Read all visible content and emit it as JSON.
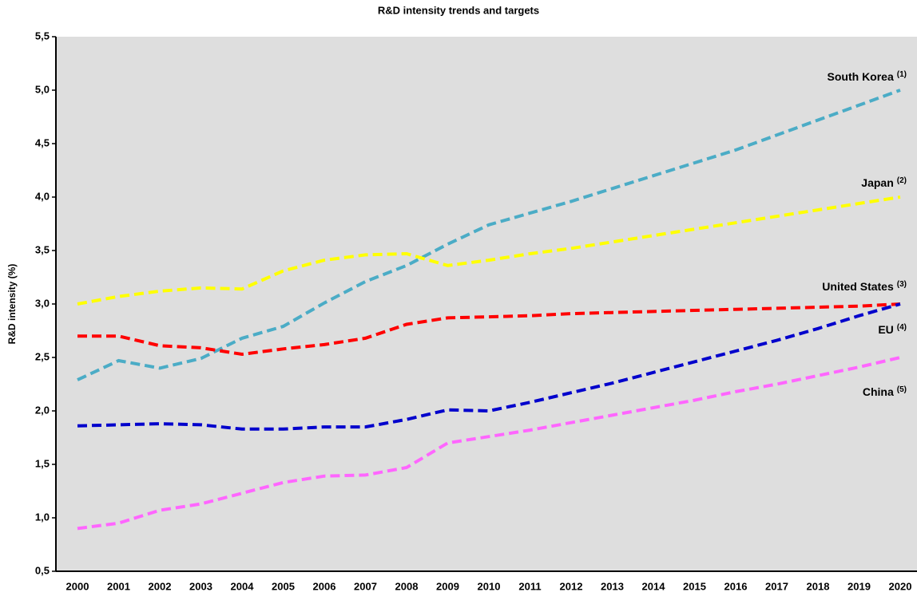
{
  "chart_data": {
    "type": "line",
    "title": "R&D intensity trends and targets",
    "y_label": "R&D intensity (%)",
    "categories": [
      "2000",
      "2001",
      "2002",
      "2003",
      "2004",
      "2005",
      "2006",
      "2007",
      "2008",
      "2009",
      "2010",
      "2011",
      "2012",
      "2013",
      "2014",
      "2015",
      "2016",
      "2017",
      "2018",
      "2019",
      "2020"
    ],
    "series": [
      {
        "name": "South Korea",
        "note": "(1)",
        "color": "#4bacc6",
        "values": [
          2.29,
          2.47,
          2.4,
          2.49,
          2.68,
          2.79,
          3.01,
          3.21,
          3.36,
          3.56,
          3.74,
          3.85,
          3.96,
          4.08,
          4.2,
          4.32,
          4.44,
          4.58,
          4.72,
          4.86,
          5.0
        ]
      },
      {
        "name": "Japan",
        "note": "(2)",
        "color": "#ffff00",
        "values": [
          3.0,
          3.07,
          3.12,
          3.15,
          3.14,
          3.31,
          3.41,
          3.46,
          3.47,
          3.36,
          3.41,
          3.47,
          3.52,
          3.58,
          3.64,
          3.7,
          3.76,
          3.82,
          3.88,
          3.94,
          4.0
        ]
      },
      {
        "name": "United States",
        "note": "(3)",
        "color": "#ff0000",
        "values": [
          2.7,
          2.7,
          2.61,
          2.59,
          2.53,
          2.58,
          2.62,
          2.68,
          2.81,
          2.87,
          2.88,
          2.89,
          2.91,
          2.92,
          2.93,
          2.94,
          2.95,
          2.96,
          2.97,
          2.98,
          3.0
        ]
      },
      {
        "name": "EU",
        "note": "(4)",
        "color": "#0000cc",
        "values": [
          1.86,
          1.87,
          1.88,
          1.87,
          1.83,
          1.83,
          1.85,
          1.85,
          1.92,
          2.01,
          2.0,
          2.08,
          2.17,
          2.26,
          2.36,
          2.46,
          2.56,
          2.66,
          2.77,
          2.89,
          3.0
        ]
      },
      {
        "name": "China",
        "note": "(5)",
        "color": "#ff66ff",
        "values": [
          0.9,
          0.95,
          1.07,
          1.13,
          1.23,
          1.33,
          1.39,
          1.4,
          1.47,
          1.7,
          1.76,
          1.82,
          1.89,
          1.96,
          2.03,
          2.1,
          2.18,
          2.25,
          2.33,
          2.41,
          2.5
        ]
      }
    ],
    "ylim": [
      0.5,
      5.5
    ],
    "yticks": [
      {
        "value": 0.5,
        "label": "0,5"
      },
      {
        "value": 1.0,
        "label": "1,0"
      },
      {
        "value": 1.5,
        "label": "1,5"
      },
      {
        "value": 2.0,
        "label": "2,0"
      },
      {
        "value": 2.5,
        "label": "2,5"
      },
      {
        "value": 3.0,
        "label": "3,0"
      },
      {
        "value": 3.5,
        "label": "3,5"
      },
      {
        "value": 4.0,
        "label": "4,0"
      },
      {
        "value": 4.5,
        "label": "4,5"
      },
      {
        "value": 5.0,
        "label": "5,0"
      },
      {
        "value": 5.5,
        "label": "5,5"
      }
    ],
    "grid": false
  }
}
